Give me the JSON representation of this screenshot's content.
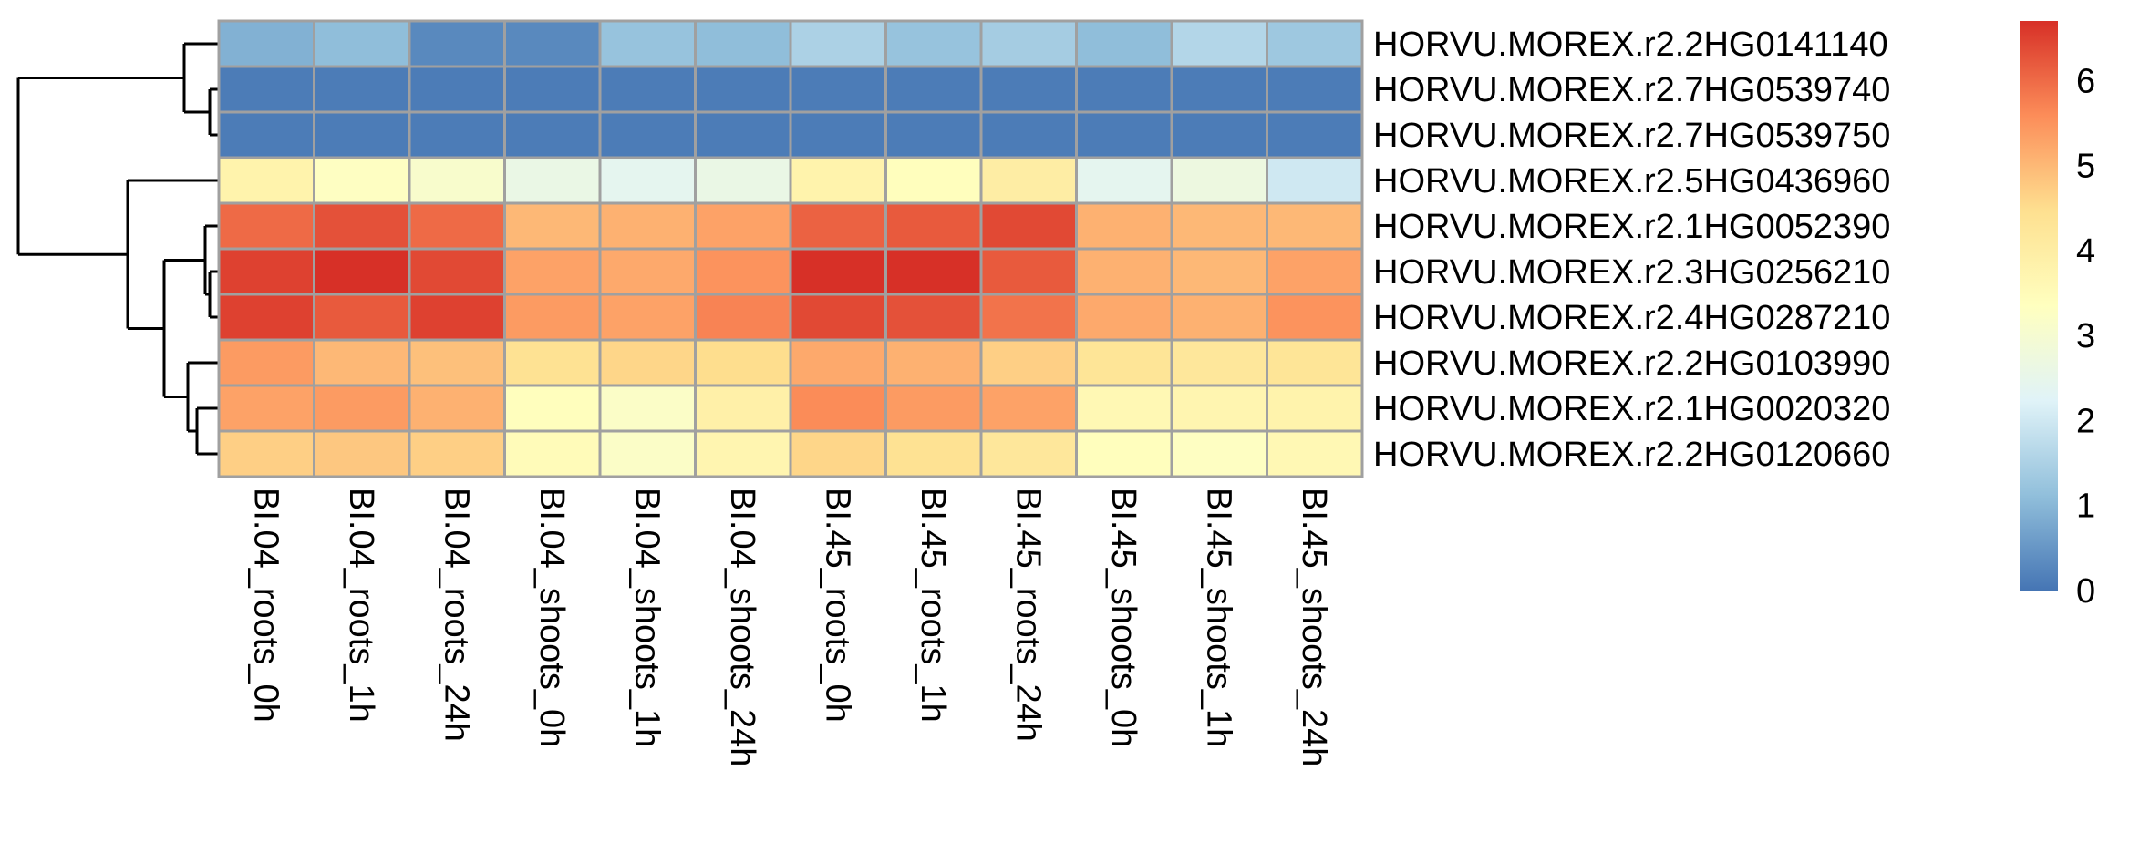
{
  "chart_data": {
    "type": "heatmap",
    "columns": [
      "BI.04_roots_0h",
      "BI.04_roots_1h",
      "BI.04_roots_24h",
      "BI.04_shoots_0h",
      "BI.04_shoots_1h",
      "BI.04_shoots_24h",
      "BI.45_roots_0h",
      "BI.45_roots_1h",
      "BI.45_roots_24h",
      "BI.45_shoots_0h",
      "BI.45_shoots_1h",
      "BI.45_shoots_24h"
    ],
    "rows": [
      "HORVU.MOREX.r2.2HG0141140",
      "HORVU.MOREX.r2.7HG0539740",
      "HORVU.MOREX.r2.7HG0539750",
      "HORVU.MOREX.r2.5HG0436960",
      "HORVU.MOREX.r2.1HG0052390",
      "HORVU.MOREX.r2.3HG0256210",
      "HORVU.MOREX.r2.4HG0287210",
      "HORVU.MOREX.r2.2HG0103990",
      "HORVU.MOREX.r2.1HG0020320",
      "HORVU.MOREX.r2.2HG0120660"
    ],
    "values": [
      [
        0.9,
        1.1,
        0.3,
        0.3,
        1.2,
        1.1,
        1.5,
        1.2,
        1.4,
        1.1,
        1.6,
        1.3
      ],
      [
        0.1,
        0.1,
        0.1,
        0.1,
        0.1,
        0.1,
        0.1,
        0.1,
        0.1,
        0.1,
        0.1,
        0.1
      ],
      [
        0.1,
        0.1,
        0.1,
        0.1,
        0.1,
        0.1,
        0.1,
        0.1,
        0.1,
        0.1,
        0.1,
        0.1
      ],
      [
        3.8,
        3.3,
        3.1,
        2.6,
        2.4,
        2.6,
        3.8,
        3.4,
        4.0,
        2.4,
        2.7,
        2.0
      ],
      [
        6.0,
        6.3,
        6.0,
        5.0,
        5.1,
        5.3,
        6.1,
        6.2,
        6.4,
        5.1,
        5.0,
        5.0
      ],
      [
        6.5,
        6.7,
        6.4,
        5.3,
        5.2,
        5.5,
        6.7,
        6.7,
        6.2,
        5.1,
        5.0,
        5.3
      ],
      [
        6.5,
        6.2,
        6.5,
        5.4,
        5.3,
        5.7,
        6.4,
        6.3,
        5.9,
        5.2,
        5.1,
        5.5
      ],
      [
        5.4,
        5.0,
        4.9,
        4.4,
        4.6,
        4.5,
        5.2,
        5.1,
        4.7,
        4.3,
        4.2,
        4.3
      ],
      [
        5.3,
        5.4,
        5.1,
        3.4,
        3.2,
        3.9,
        5.6,
        5.4,
        5.3,
        3.6,
        3.7,
        3.8
      ],
      [
        4.7,
        4.8,
        4.7,
        3.5,
        3.2,
        3.7,
        4.6,
        4.4,
        4.2,
        3.4,
        3.3,
        3.6
      ]
    ],
    "colorbar": {
      "min": 0,
      "max": 6.7,
      "ticks": [
        "0",
        "1",
        "2",
        "3",
        "4",
        "5",
        "6"
      ]
    },
    "palette": [
      "#4575B4",
      "#91BFDB",
      "#E0F3F8",
      "#FFFFBF",
      "#FEE090",
      "#FC8D59",
      "#D73027"
    ],
    "cell_border_color": "#a0a0a0",
    "dendrogram": "row-clustering tree shown on left; columns not clustered"
  }
}
